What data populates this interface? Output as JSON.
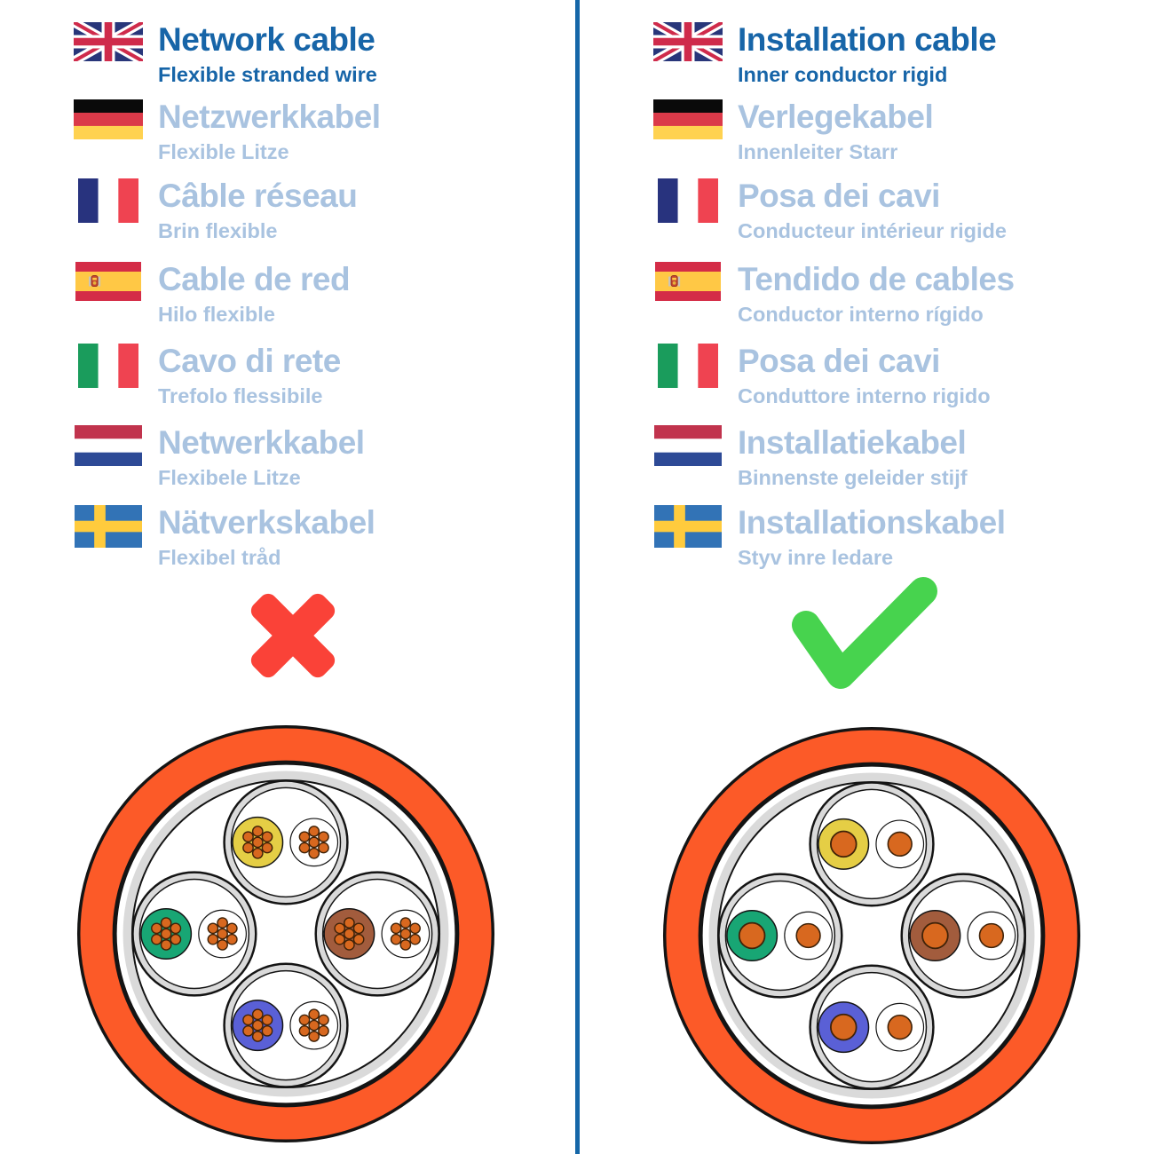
{
  "colors": {
    "heading_blue": "#1765A8",
    "muted_blue": "#A9C3E0",
    "divider_blue": "#1567A8",
    "cross_red": "#FA4238",
    "check_green": "#47D34E"
  },
  "left_column": {
    "verdict": "cross",
    "cable_type": "stranded",
    "rows": [
      {
        "lang": "en",
        "flag": "uk",
        "title": "Network cable",
        "subtitle": "Flexible stranded wire"
      },
      {
        "lang": "de",
        "flag": "germany",
        "title": "Netzwerkkabel",
        "subtitle": "Flexible Litze"
      },
      {
        "lang": "fr",
        "flag": "france",
        "title": "Câble réseau",
        "subtitle": "Brin flexible"
      },
      {
        "lang": "es",
        "flag": "spain",
        "title": "Cable de red",
        "subtitle": "Hilo flexible"
      },
      {
        "lang": "it",
        "flag": "italy",
        "title": "Cavo di rete",
        "subtitle": "Trefolo flessibile"
      },
      {
        "lang": "nl",
        "flag": "netherlands",
        "title": "Netwerkkabel",
        "subtitle": "Flexibele Litze"
      },
      {
        "lang": "sv",
        "flag": "sweden",
        "title": "Nätverkskabel",
        "subtitle": "Flexibel tråd"
      }
    ]
  },
  "right_column": {
    "verdict": "check",
    "cable_type": "rigid",
    "rows": [
      {
        "lang": "en",
        "flag": "uk",
        "title": "Installation cable",
        "subtitle": "Inner conductor rigid"
      },
      {
        "lang": "de",
        "flag": "germany",
        "title": "Verlegekabel",
        "subtitle": "Innenleiter Starr"
      },
      {
        "lang": "fr",
        "flag": "france",
        "title": "Posa dei cavi",
        "subtitle": "Conducteur intérieur rigide"
      },
      {
        "lang": "es",
        "flag": "spain",
        "title": "Tendido de cables",
        "subtitle": "Conductor interno rígido"
      },
      {
        "lang": "it",
        "flag": "italy",
        "title": "Posa dei cavi",
        "subtitle": "Conduttore interno rigido"
      },
      {
        "lang": "nl",
        "flag": "netherlands",
        "title": "Installatiekabel",
        "subtitle": "Binnenste geleider stijf"
      },
      {
        "lang": "sv",
        "flag": "sweden",
        "title": "Installationskabel",
        "subtitle": "Styv inre ledare"
      }
    ]
  },
  "cable_diagram": {
    "jacket_color": "#FC5A28",
    "shield_color": "#DADADA",
    "outline_color": "#141414",
    "copper_color": "#D8681F",
    "copper_stroke": "#3F2208",
    "pair_colors": [
      "#E5CE45",
      "#18A674",
      "#A25C3D",
      "#5A60D6"
    ],
    "pair_names": [
      "yellow",
      "green",
      "brown",
      "blue"
    ]
  }
}
